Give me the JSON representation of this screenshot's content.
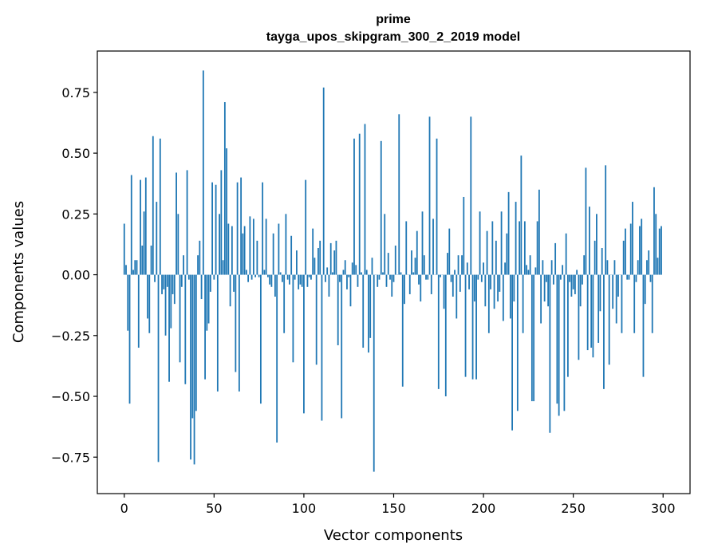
{
  "chart_data": {
    "type": "bar",
    "title": "prime",
    "subtitle": "tayga_upos_skipgram_300_2_2019 model",
    "xlabel": "Vector components",
    "ylabel": "Components values",
    "xlim": [
      -15,
      315
    ],
    "ylim": [
      -0.9,
      0.92
    ],
    "xticks": [
      0,
      50,
      100,
      150,
      200,
      250,
      300
    ],
    "yticks": [
      -0.75,
      -0.5,
      -0.25,
      0.0,
      0.25,
      0.5,
      0.75
    ],
    "xtick_labels": [
      "0",
      "50",
      "100",
      "150",
      "200",
      "250",
      "300"
    ],
    "ytick_labels": [
      "−0.75",
      "−0.50",
      "−0.25",
      "0.00",
      "0.25",
      "0.50",
      "0.75"
    ],
    "bar_color": "#1f77b4",
    "grid": false,
    "x": [
      0,
      1,
      2,
      3,
      4,
      5,
      6,
      7,
      8,
      9,
      10,
      11,
      12,
      13,
      14,
      15,
      16,
      17,
      18,
      19,
      20,
      21,
      22,
      23,
      24,
      25,
      26,
      27,
      28,
      29,
      30,
      31,
      32,
      33,
      34,
      35,
      36,
      37,
      38,
      39,
      40,
      41,
      42,
      43,
      44,
      45,
      46,
      47,
      48,
      49,
      50,
      51,
      52,
      53,
      54,
      55,
      56,
      57,
      58,
      59,
      60,
      61,
      62,
      63,
      64,
      65,
      66,
      67,
      68,
      69,
      70,
      71,
      72,
      73,
      74,
      75,
      76,
      77,
      78,
      79,
      80,
      81,
      82,
      83,
      84,
      85,
      86,
      87,
      88,
      89,
      90,
      91,
      92,
      93,
      94,
      95,
      96,
      97,
      98,
      99,
      100,
      101,
      102,
      103,
      104,
      105,
      106,
      107,
      108,
      109,
      110,
      111,
      112,
      113,
      114,
      115,
      116,
      117,
      118,
      119,
      120,
      121,
      122,
      123,
      124,
      125,
      126,
      127,
      128,
      129,
      130,
      131,
      132,
      133,
      134,
      135,
      136,
      137,
      138,
      139,
      140,
      141,
      142,
      143,
      144,
      145,
      146,
      147,
      148,
      149,
      150,
      151,
      152,
      153,
      154,
      155,
      156,
      157,
      158,
      159,
      160,
      161,
      162,
      163,
      164,
      165,
      166,
      167,
      168,
      169,
      170,
      171,
      172,
      173,
      174,
      175,
      176,
      177,
      178,
      179,
      180,
      181,
      182,
      183,
      184,
      185,
      186,
      187,
      188,
      189,
      190,
      191,
      192,
      193,
      194,
      195,
      196,
      197,
      198,
      199,
      200,
      201,
      202,
      203,
      204,
      205,
      206,
      207,
      208,
      209,
      210,
      211,
      212,
      213,
      214,
      215,
      216,
      217,
      218,
      219,
      220,
      221,
      222,
      223,
      224,
      225,
      226,
      227,
      228,
      229,
      230,
      231,
      232,
      233,
      234,
      235,
      236,
      237,
      238,
      239,
      240,
      241,
      242,
      243,
      244,
      245,
      246,
      247,
      248,
      249,
      250,
      251,
      252,
      253,
      254,
      255,
      256,
      257,
      258,
      259,
      260,
      261,
      262,
      263,
      264,
      265,
      266,
      267,
      268,
      269,
      270,
      271,
      272,
      273,
      274,
      275,
      276,
      277,
      278,
      279,
      280,
      281,
      282,
      283,
      284,
      285,
      286,
      287,
      288,
      289,
      290,
      291,
      292,
      293,
      294,
      295,
      296,
      297,
      298,
      299
    ],
    "values": [
      0.21,
      0.04,
      -0.23,
      -0.53,
      0.41,
      0.02,
      0.06,
      0.06,
      -0.3,
      0.39,
      0.12,
      0.26,
      0.4,
      -0.18,
      -0.24,
      0.12,
      0.57,
      -0.03,
      0.3,
      -0.77,
      0.56,
      -0.08,
      -0.06,
      -0.25,
      -0.05,
      -0.44,
      -0.22,
      -0.08,
      -0.12,
      0.42,
      0.25,
      -0.36,
      -0.05,
      0.08,
      -0.45,
      0.43,
      -0.02,
      -0.76,
      -0.59,
      -0.78,
      -0.56,
      0.08,
      0.14,
      -0.1,
      0.84,
      -0.43,
      -0.23,
      -0.2,
      -0.07,
      0.38,
      -0.02,
      0.37,
      -0.48,
      0.25,
      0.43,
      0.06,
      0.71,
      0.52,
      0.21,
      -0.13,
      0.2,
      -0.07,
      -0.4,
      0.38,
      -0.48,
      0.4,
      0.17,
      0.2,
      0.02,
      -0.03,
      0.24,
      -0.02,
      0.23,
      -0.01,
      0.14,
      -0.01,
      -0.53,
      0.38,
      0.02,
      0.23,
      -0.01,
      -0.04,
      -0.05,
      0.17,
      -0.09,
      -0.69,
      0.21,
      0.01,
      -0.03,
      -0.24,
      0.25,
      -0.02,
      -0.04,
      0.16,
      -0.36,
      -0.02,
      0.1,
      -0.06,
      -0.04,
      -0.05,
      -0.57,
      0.39,
      -0.05,
      -0.01,
      -0.02,
      0.19,
      0.07,
      -0.37,
      0.11,
      0.14,
      -0.6,
      0.77,
      -0.03,
      0.03,
      -0.09,
      0.13,
      0.01,
      0.1,
      0.14,
      -0.29,
      -0.03,
      -0.59,
      0.02,
      0.06,
      -0.06,
      -0.01,
      -0.13,
      0.05,
      0.56,
      0.04,
      -0.05,
      0.58,
      0.01,
      -0.3,
      0.62,
      0.02,
      -0.32,
      -0.26,
      0.07,
      -0.81,
      0.0,
      -0.05,
      -0.02,
      0.55,
      0.01,
      0.25,
      -0.05,
      0.09,
      -0.02,
      -0.09,
      -0.03,
      0.12,
      0.0,
      0.66,
      0.01,
      -0.46,
      -0.12,
      0.22,
      0.0,
      -0.08,
      0.1,
      0.01,
      0.07,
      0.18,
      -0.04,
      -0.11,
      0.26,
      0.08,
      -0.02,
      -0.02,
      0.65,
      -0.08,
      0.23,
      0.0,
      0.56,
      -0.47,
      -0.01,
      0.0,
      -0.14,
      -0.5,
      0.09,
      0.19,
      -0.03,
      -0.09,
      0.02,
      -0.18,
      0.08,
      -0.07,
      0.08,
      0.32,
      -0.42,
      0.05,
      -0.06,
      0.65,
      -0.43,
      -0.11,
      -0.43,
      -0.02,
      0.26,
      -0.03,
      0.05,
      -0.13,
      0.18,
      -0.24,
      -0.06,
      0.22,
      -0.14,
      0.14,
      -0.11,
      -0.07,
      0.26,
      -0.19,
      0.05,
      0.17,
      0.34,
      -0.18,
      -0.64,
      -0.11,
      0.3,
      -0.56,
      0.22,
      0.49,
      -0.24,
      0.22,
      0.04,
      0.02,
      0.08,
      -0.52,
      -0.52,
      0.03,
      0.22,
      0.35,
      -0.2,
      0.06,
      -0.11,
      -0.03,
      -0.13,
      -0.65,
      0.06,
      -0.04,
      0.13,
      -0.53,
      -0.58,
      -0.02,
      0.04,
      -0.56,
      0.17,
      -0.42,
      -0.03,
      -0.09,
      -0.06,
      -0.08,
      0.02,
      -0.35,
      -0.13,
      -0.04,
      0.08,
      0.44,
      -0.31,
      0.28,
      -0.3,
      -0.34,
      0.14,
      0.25,
      -0.28,
      -0.15,
      0.11,
      -0.47,
      0.45,
      0.06,
      -0.37,
      0.0,
      -0.14,
      0.06,
      -0.2,
      -0.09,
      0.0,
      -0.24,
      0.14,
      0.19,
      -0.02,
      -0.02,
      0.21,
      0.3,
      -0.24,
      -0.03,
      0.06,
      0.2,
      0.23,
      -0.42,
      -0.12,
      0.06,
      0.1,
      -0.03,
      -0.24,
      0.36,
      0.25,
      0.07,
      0.19,
      0.2
    ]
  }
}
